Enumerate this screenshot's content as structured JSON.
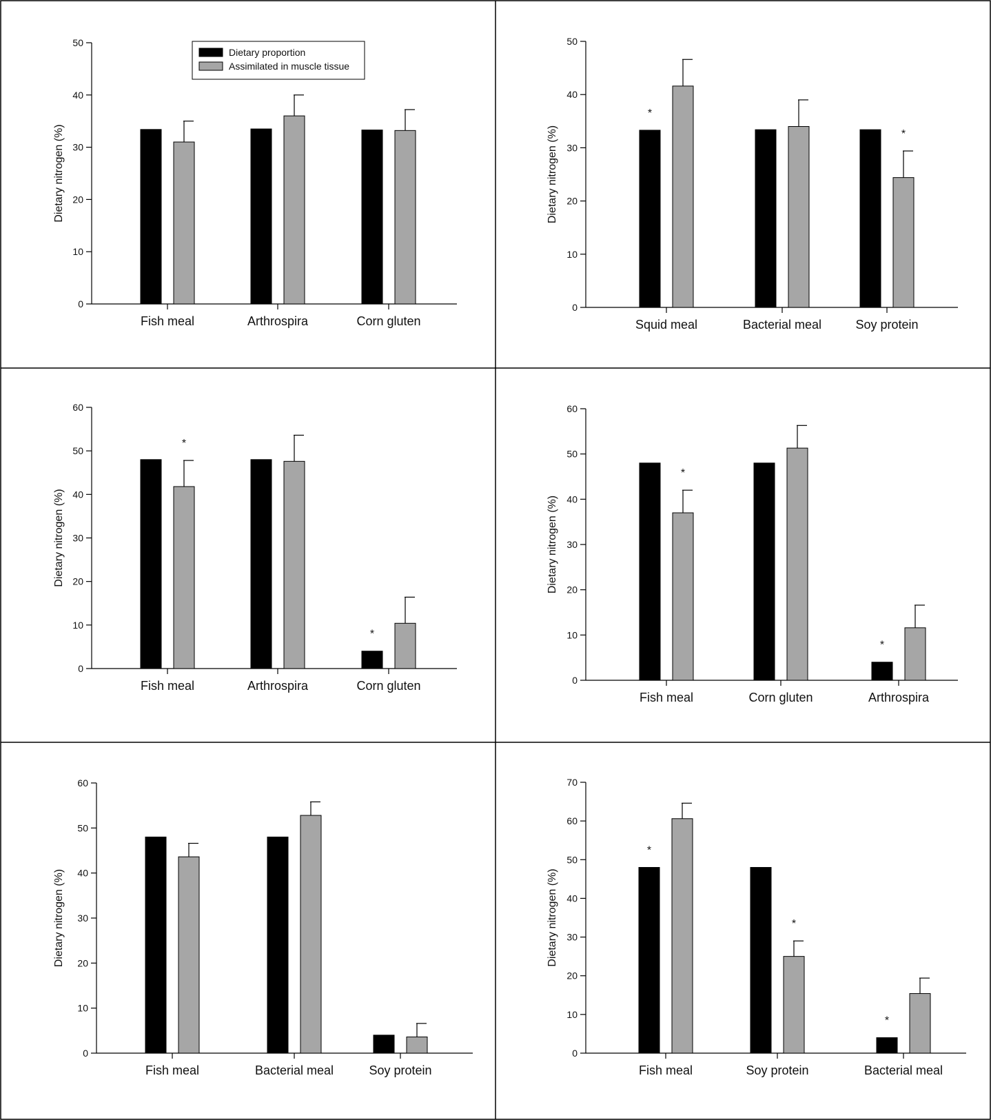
{
  "colors": {
    "dietary": "#000000",
    "assimilated": "#a6a6a6",
    "frame": "#000000"
  },
  "legend": {
    "items": [
      {
        "label": "Dietary proportion",
        "color": "#000000"
      },
      {
        "label": "Assimilated in muscle tissue",
        "color": "#a6a6a6"
      }
    ]
  },
  "chart_data": [
    {
      "type": "bar",
      "title": "",
      "ylabel": "Dietary nitrogen (%)",
      "ylim": [
        0,
        50
      ],
      "yticks": [
        0,
        10,
        20,
        30,
        40,
        50
      ],
      "categories": [
        "Fish meal",
        "Arthrospira",
        "Corn gluten"
      ],
      "series": [
        {
          "name": "Dietary proportion",
          "values": [
            33.4,
            33.5,
            33.3
          ]
        },
        {
          "name": "Assimilated in muscle tissue",
          "values": [
            31.0,
            36.0,
            33.2
          ],
          "errors": [
            4.0,
            4.0,
            4.0
          ]
        }
      ],
      "significant": [],
      "legend": "top"
    },
    {
      "type": "bar",
      "title": "",
      "ylabel": "Dietary nitrogen (%)",
      "ylim": [
        0,
        50
      ],
      "yticks": [
        0,
        10,
        20,
        30,
        40,
        50
      ],
      "categories": [
        "Squid meal",
        "Bacterial meal",
        "Soy protein"
      ],
      "series": [
        {
          "name": "Dietary proportion",
          "values": [
            33.3,
            33.4,
            33.4
          ]
        },
        {
          "name": "Assimilated in muscle tissue",
          "values": [
            41.6,
            34.0,
            24.4
          ],
          "errors": [
            5.0,
            5.0,
            5.0
          ]
        }
      ],
      "significant": [
        [
          0,
          0
        ],
        [
          2,
          1
        ]
      ]
    },
    {
      "type": "bar",
      "title": "",
      "ylabel": "Dietary nitrogen (%)",
      "ylim": [
        0,
        60
      ],
      "yticks": [
        0,
        10,
        20,
        30,
        40,
        50,
        60
      ],
      "categories": [
        "Fish meal",
        "Arthrospira",
        "Corn gluten"
      ],
      "series": [
        {
          "name": "Dietary proportion",
          "values": [
            48.0,
            48.0,
            4.0
          ]
        },
        {
          "name": "Assimilated in muscle tissue",
          "values": [
            41.8,
            47.6,
            10.4
          ],
          "errors": [
            6.0,
            6.0,
            6.0
          ]
        }
      ],
      "significant": [
        [
          0,
          1
        ],
        [
          2,
          0
        ]
      ]
    },
    {
      "type": "bar",
      "title": "",
      "ylabel": "Dietary nitrogen (%)",
      "ylim": [
        0,
        60
      ],
      "yticks": [
        0,
        10,
        20,
        30,
        40,
        50,
        60
      ],
      "categories": [
        "Fish meal",
        "Corn gluten",
        "Arthrospira"
      ],
      "series": [
        {
          "name": "Dietary proportion",
          "values": [
            48.0,
            48.0,
            4.0
          ]
        },
        {
          "name": "Assimilated in muscle tissue",
          "values": [
            37.0,
            51.3,
            11.6
          ],
          "errors": [
            5.0,
            5.0,
            5.0
          ]
        }
      ],
      "significant": [
        [
          0,
          1
        ],
        [
          2,
          0
        ]
      ]
    },
    {
      "type": "bar",
      "title": "",
      "ylabel": "Dietary nitrogen (%)",
      "ylim": [
        0,
        60
      ],
      "yticks": [
        0,
        10,
        20,
        30,
        40,
        50,
        60
      ],
      "categories": [
        "Fish meal",
        "Bacterial meal",
        "Soy protein"
      ],
      "series": [
        {
          "name": "Dietary proportion",
          "values": [
            48.0,
            48.0,
            4.0
          ]
        },
        {
          "name": "Assimilated in muscle tissue",
          "values": [
            43.6,
            52.8,
            3.6
          ],
          "errors": [
            3.0,
            3.0,
            3.0
          ]
        }
      ],
      "significant": []
    },
    {
      "type": "bar",
      "title": "",
      "ylabel": "Dietary nitrogen (%)",
      "ylim": [
        0,
        70
      ],
      "yticks": [
        0,
        10,
        20,
        30,
        40,
        50,
        60,
        70
      ],
      "categories": [
        "Fish meal",
        "Soy protein",
        "Bacterial meal"
      ],
      "series": [
        {
          "name": "Dietary proportion",
          "values": [
            48.0,
            48.0,
            4.0
          ]
        },
        {
          "name": "Assimilated in muscle tissue",
          "values": [
            60.6,
            25.0,
            15.4
          ],
          "errors": [
            4.0,
            4.0,
            4.0
          ]
        }
      ],
      "significant": [
        [
          0,
          0
        ],
        [
          1,
          1
        ],
        [
          2,
          0
        ]
      ]
    }
  ]
}
